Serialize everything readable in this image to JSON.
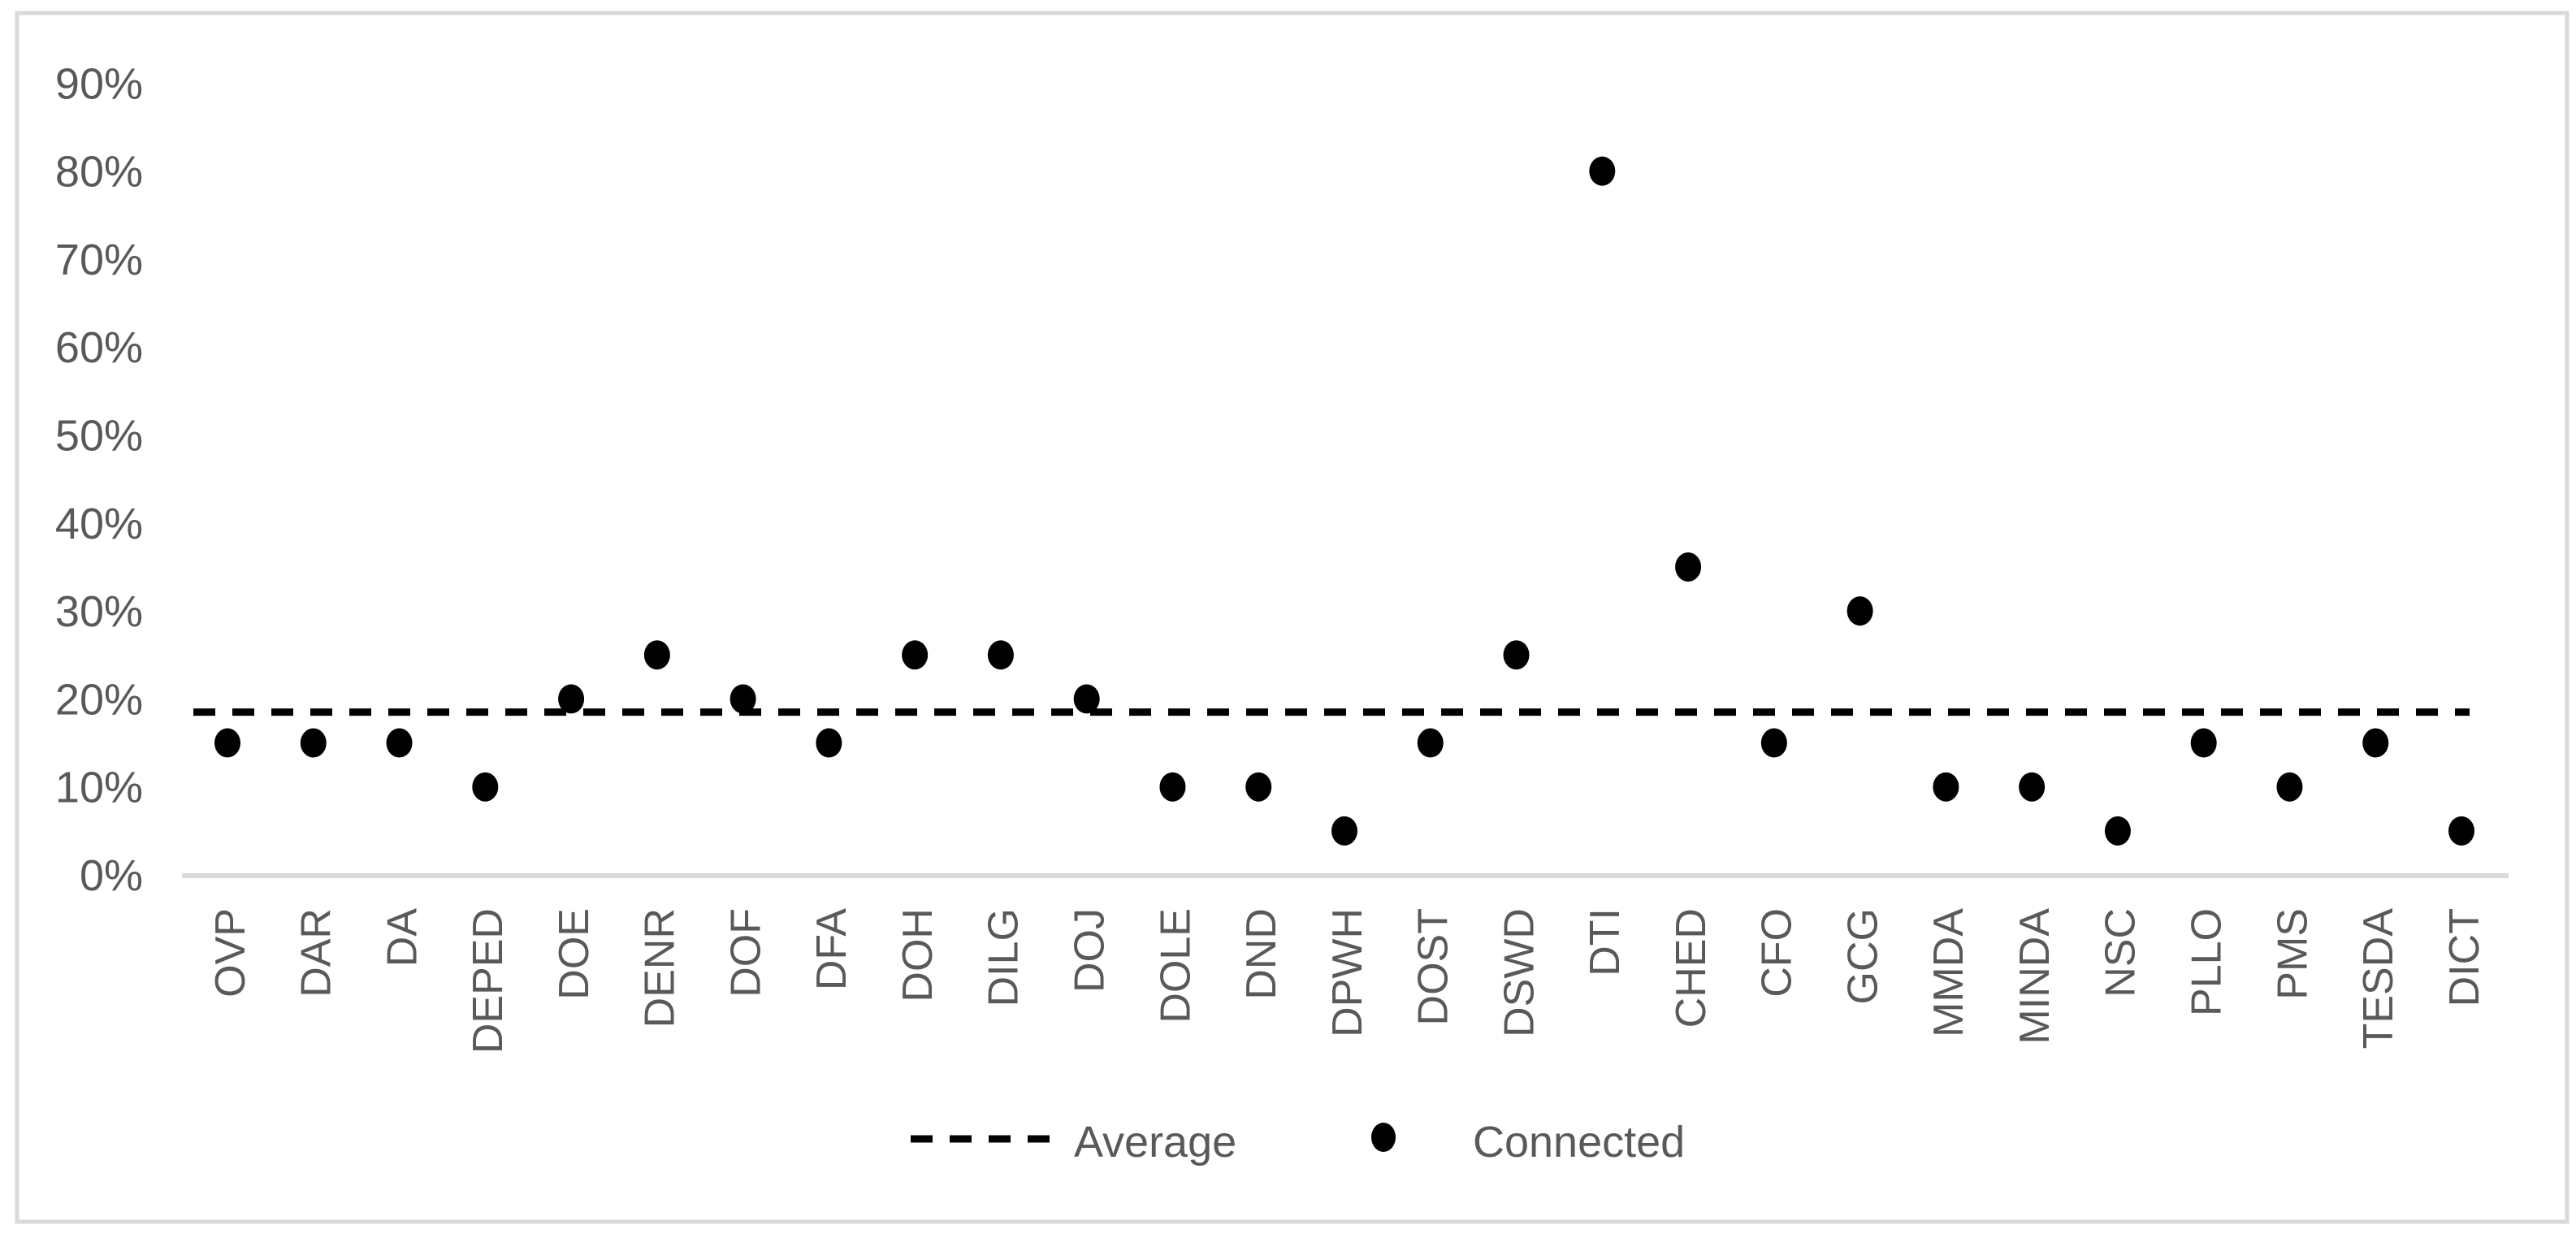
{
  "legend": {
    "average_label": "Average",
    "connected_label": "Connected"
  },
  "colors": {
    "point": "#000000",
    "average_line": "#000000",
    "axis_line": "#d9d9d9",
    "frame_border": "#d9d9d9",
    "label_text": "#595959",
    "background": "#ffffff"
  },
  "chart_data": {
    "type": "scatter",
    "title": "",
    "xlabel": "",
    "ylabel": "",
    "categories": [
      "OVP",
      "DAR",
      "DA",
      "DEPED",
      "DOE",
      "DENR",
      "DOF",
      "DFA",
      "DOH",
      "DILG",
      "DOJ",
      "DOLE",
      "DND",
      "DPWH",
      "DOST",
      "DSWD",
      "DTI",
      "CHED",
      "CFO",
      "GCG",
      "MMDA",
      "MINDA",
      "NSC",
      "PLLO",
      "PMS",
      "TESDA",
      "DICT"
    ],
    "series": [
      {
        "name": "Connected",
        "marker": "dot",
        "values": [
          15,
          15,
          15,
          10,
          20,
          25,
          20,
          15,
          25,
          25,
          20,
          10,
          10,
          5,
          15,
          25,
          80,
          35,
          15,
          30,
          10,
          10,
          5,
          15,
          10,
          15,
          5
        ]
      },
      {
        "name": "Average",
        "marker": "dashed-line",
        "value": 18.5
      }
    ],
    "yticks": [
      0,
      10,
      20,
      30,
      40,
      50,
      60,
      70,
      80,
      90
    ],
    "ytick_suffix": "%",
    "ylim": [
      0,
      90
    ],
    "grid": false,
    "legend_position": "bottom"
  }
}
